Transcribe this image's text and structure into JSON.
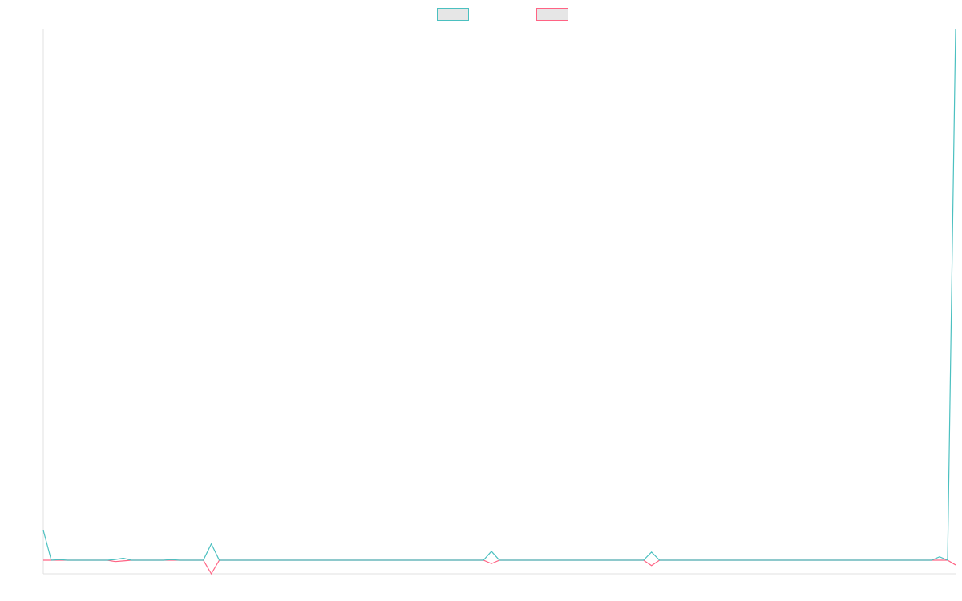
{
  "chart_data": {
    "type": "line",
    "ylim": [
      -1,
      39
    ],
    "legend": "top",
    "series": [
      {
        "color": "#4bc0c0",
        "values": [
          2.2,
          0,
          0.05,
          0,
          0,
          0,
          0,
          0,
          0,
          0.05,
          0.15,
          0,
          0,
          0,
          0,
          0,
          0.05,
          0,
          0,
          0,
          0,
          1.2,
          0,
          0,
          0,
          0,
          0,
          0,
          0,
          0,
          0,
          0,
          0,
          0,
          0,
          0,
          0,
          0,
          0,
          0,
          0,
          0,
          0,
          0,
          0,
          0,
          0,
          0,
          0,
          0,
          0,
          0,
          0,
          0,
          0,
          0,
          0.65,
          0,
          0,
          0,
          0,
          0,
          0,
          0,
          0,
          0,
          0,
          0,
          0,
          0,
          0,
          0,
          0,
          0,
          0,
          0,
          0.6,
          0,
          0,
          0,
          0,
          0,
          0,
          0,
          0,
          0,
          0,
          0,
          0,
          0,
          0,
          0,
          0,
          0,
          0,
          0,
          0,
          0,
          0,
          0,
          0,
          0,
          0,
          0,
          0,
          0,
          0,
          0,
          0,
          0,
          0,
          0,
          0.25,
          0,
          39
        ]
      },
      {
        "color": "#ff6384",
        "values": [
          0,
          0,
          0,
          0,
          0,
          0,
          0,
          0,
          0,
          -0.1,
          -0.05,
          0,
          0,
          0,
          0,
          0,
          0,
          0,
          0,
          0,
          0,
          -1,
          0,
          0,
          0,
          0,
          0,
          0,
          0,
          0,
          0,
          0,
          0,
          0,
          0,
          0,
          0,
          0,
          0,
          0,
          0,
          0,
          0,
          0,
          0,
          0,
          0,
          0,
          0,
          0,
          0,
          0,
          0,
          0,
          0,
          0,
          -0.25,
          0,
          0,
          0,
          0,
          0,
          0,
          0,
          0,
          0,
          0,
          0,
          0,
          0,
          0,
          0,
          0,
          0,
          0,
          0,
          -0.4,
          0,
          0,
          0,
          0,
          0,
          0,
          0,
          0,
          0,
          0,
          0,
          0,
          0,
          0,
          0,
          0,
          0,
          0,
          0,
          0,
          0,
          0,
          0,
          0,
          0,
          0,
          0,
          0,
          0,
          0,
          0,
          0,
          0,
          0,
          0,
          0,
          0,
          -0.35
        ]
      }
    ]
  }
}
